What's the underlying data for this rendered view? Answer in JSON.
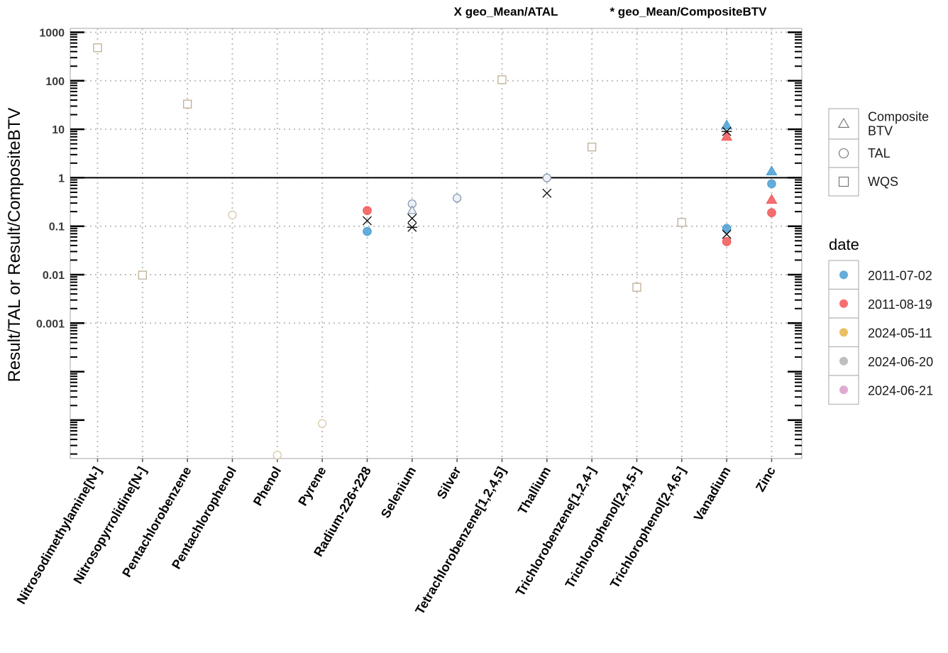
{
  "chart_data": {
    "type": "scatter",
    "subtitle_left": "X geo_Mean/ATAL",
    "subtitle_right": "* geo_Mean/CompositeBTV",
    "ylabel": "Result/TAL or Result/CompositeBTV",
    "y_scale": "log10",
    "ylim": [
      1e-06,
      1000
    ],
    "y_ticks": [
      {
        "value": 1000,
        "label": "1000"
      },
      {
        "value": 100,
        "label": "100"
      },
      {
        "value": 10,
        "label": "10"
      },
      {
        "value": 1,
        "label": "1"
      },
      {
        "value": 0.1,
        "label": "0.1"
      },
      {
        "value": 0.01,
        "label": "0.01"
      },
      {
        "value": 0.001,
        "label": "0.001"
      },
      {
        "value": 0.0001,
        "label": ""
      },
      {
        "value": 1e-05,
        "label": ""
      }
    ],
    "reference_line": 1,
    "grid": true,
    "categories": [
      "Nitrosodimethylamine[N-]",
      "Nitrosopyrrolidine[N-]",
      "Pentachlorobenzene",
      "Pentachlorophenol",
      "Phenol",
      "Pyrene",
      "Radium-226+228",
      "Selenium",
      "Silver",
      "Tetrachlorobenzene[1,2,4,5]",
      "Thallium",
      "Trichlorobenzene[1,2,4-]",
      "Trichlorophenol[2,4,5-]",
      "Trichlorophenol[2,4,6-]",
      "Vanadium",
      "Zinc"
    ],
    "shape_legend": {
      "items": [
        {
          "shape": "triangle",
          "label_lines": [
            "Composite",
            "BTV"
          ]
        },
        {
          "shape": "circle",
          "label_lines": [
            "TAL"
          ]
        },
        {
          "shape": "square",
          "label_lines": [
            "WQS"
          ]
        }
      ]
    },
    "date_legend": {
      "title": "date",
      "items": [
        {
          "label": "2011-07-02",
          "color": "#4a9fd4"
        },
        {
          "label": "2011-08-19",
          "color": "#f25757"
        },
        {
          "label": "2024-05-11",
          "color": "#e8b44a"
        },
        {
          "label": "2024-06-20",
          "color": "#b4b4b4"
        },
        {
          "label": "2024-06-21",
          "color": "#d99bc9"
        }
      ]
    },
    "points": [
      {
        "category": "Nitrosodimethylamine[N-]",
        "y": 480,
        "shape": "square",
        "style": "hollow"
      },
      {
        "category": "Nitrosopyrrolidine[N-]",
        "y": 0.0098,
        "shape": "square",
        "style": "hollow"
      },
      {
        "category": "Pentachlorobenzene",
        "y": 33,
        "shape": "square",
        "style": "hollow"
      },
      {
        "category": "Pentachlorophenol",
        "y": 0.17,
        "shape": "circle",
        "style": "hollow"
      },
      {
        "category": "Phenol",
        "y": 1.9e-06,
        "shape": "circle",
        "style": "hollow"
      },
      {
        "category": "Pyrene",
        "y": 8.5e-06,
        "shape": "circle",
        "style": "hollow"
      },
      {
        "category": "Radium-226+228",
        "y": 0.21,
        "shape": "circle",
        "style": "filled",
        "date": "2011-08-19"
      },
      {
        "category": "Radium-226+228",
        "y": 0.078,
        "shape": "circle",
        "style": "filled",
        "date": "2011-07-02"
      },
      {
        "category": "Selenium",
        "y": 0.29,
        "shape": "circle",
        "style": "hollow-blue"
      },
      {
        "category": "Selenium",
        "y": 0.21,
        "shape": "triangle",
        "style": "hollow-blue"
      },
      {
        "category": "Silver",
        "y": 0.38,
        "shape": "circle",
        "style": "hollow-blue"
      },
      {
        "category": "Tetrachlorobenzene[1,2,4,5]",
        "y": 105,
        "shape": "square",
        "style": "hollow"
      },
      {
        "category": "Thallium",
        "y": 0.99,
        "shape": "circle",
        "style": "hollow-blue"
      },
      {
        "category": "Trichlorobenzene[1,2,4-]",
        "y": 4.3,
        "shape": "square",
        "style": "hollow"
      },
      {
        "category": "Trichlorophenol[2,4,5-]",
        "y": 0.0055,
        "shape": "square",
        "style": "hollow"
      },
      {
        "category": "Trichlorophenol[2,4,6-]",
        "y": 0.12,
        "shape": "square",
        "style": "hollow"
      },
      {
        "category": "Vanadium",
        "y": 12,
        "shape": "triangle",
        "style": "filled",
        "date": "2011-07-02"
      },
      {
        "category": "Vanadium",
        "y": 7,
        "shape": "triangle",
        "style": "filled",
        "date": "2011-08-19"
      },
      {
        "category": "Vanadium",
        "y": 0.09,
        "shape": "circle",
        "style": "filled",
        "date": "2011-07-02"
      },
      {
        "category": "Vanadium",
        "y": 0.048,
        "shape": "circle",
        "style": "filled",
        "date": "2011-08-19"
      },
      {
        "category": "Zinc",
        "y": 1.35,
        "shape": "triangle",
        "style": "filled",
        "date": "2011-07-02"
      },
      {
        "category": "Zinc",
        "y": 0.75,
        "shape": "circle",
        "style": "filled",
        "date": "2011-07-02"
      },
      {
        "category": "Zinc",
        "y": 0.35,
        "shape": "triangle",
        "style": "filled",
        "date": "2011-08-19"
      },
      {
        "category": "Zinc",
        "y": 0.19,
        "shape": "circle",
        "style": "filled",
        "date": "2011-08-19"
      }
    ],
    "geo_mean_markers": [
      {
        "category": "Radium-226+228",
        "y": 0.13,
        "marker": "x"
      },
      {
        "category": "Selenium",
        "y": 0.145,
        "marker": "x"
      },
      {
        "category": "Selenium",
        "y": 0.095,
        "marker": "*"
      },
      {
        "category": "Thallium",
        "y": 0.48,
        "marker": "x"
      },
      {
        "category": "Vanadium",
        "y": 9,
        "marker": "*"
      },
      {
        "category": "Vanadium",
        "y": 0.068,
        "marker": "x"
      }
    ]
  }
}
